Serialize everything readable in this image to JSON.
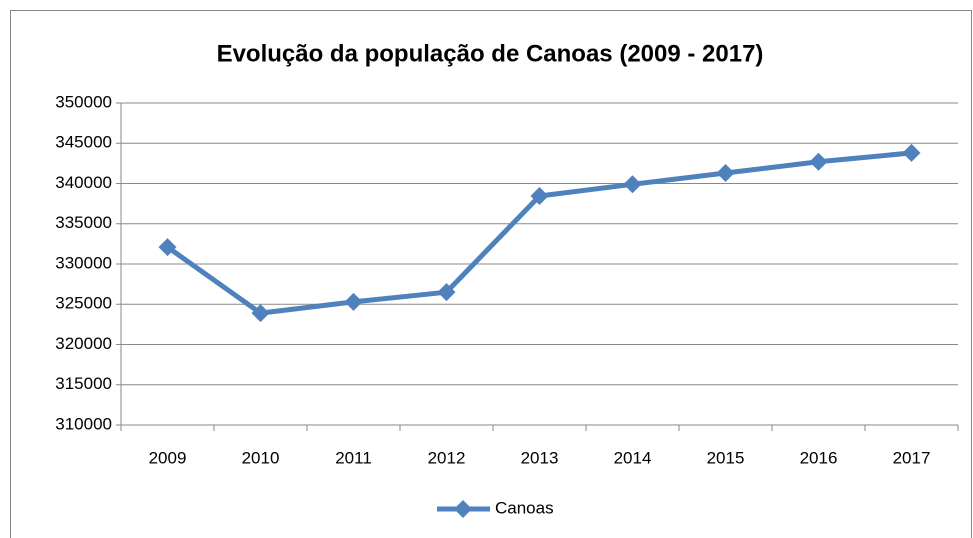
{
  "chart_data": {
    "type": "line",
    "title": "Evolução da população de Canoas (2009 - 2017)",
    "categories": [
      "2009",
      "2010",
      "2011",
      "2012",
      "2013",
      "2014",
      "2015",
      "2016",
      "2017"
    ],
    "series": [
      {
        "name": "Canoas",
        "color": "#4f81bd",
        "values": [
          332100,
          323900,
          325300,
          326500,
          338450,
          339900,
          341300,
          342700,
          343800
        ]
      }
    ],
    "ylim": [
      310000,
      350000
    ],
    "yticks": [
      310000,
      315000,
      320000,
      325000,
      330000,
      335000,
      340000,
      345000,
      350000
    ],
    "grid": true,
    "legend": "bottom"
  }
}
